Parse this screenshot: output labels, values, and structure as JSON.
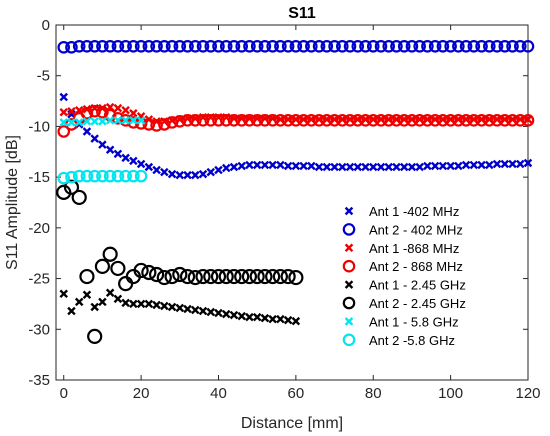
{
  "chart_data": {
    "type": "scatter",
    "title": "S11",
    "xlabel": "Distance [mm]",
    "ylabel": "S11 Amplitude [dB]",
    "xlim": [
      -2,
      120
    ],
    "ylim": [
      -35,
      0
    ],
    "xticks": [
      0,
      20,
      40,
      60,
      80,
      100,
      120
    ],
    "yticks": [
      0,
      -5,
      -10,
      -15,
      -20,
      -25,
      -30,
      -35
    ],
    "grid": false,
    "legend_position": "bottom-right",
    "series": [
      {
        "name": "Ant 1 -402 MHz",
        "color": "#0000cc",
        "marker": "x",
        "x": [
          0,
          2,
          4,
          6,
          8,
          10,
          12,
          14,
          16,
          18,
          20,
          22,
          24,
          26,
          28,
          30,
          32,
          34,
          36,
          38,
          40,
          42,
          44,
          46,
          48,
          50,
          52,
          54,
          56,
          58,
          60,
          62,
          64,
          66,
          68,
          70,
          72,
          74,
          76,
          78,
          80,
          82,
          84,
          86,
          88,
          90,
          92,
          94,
          96,
          98,
          100,
          102,
          104,
          106,
          108,
          110,
          112,
          114,
          116,
          118,
          120
        ],
        "y": [
          -7.1,
          -8.8,
          -9.8,
          -10.5,
          -11.2,
          -11.8,
          -12.3,
          -12.7,
          -13.1,
          -13.4,
          -13.7,
          -14.0,
          -14.3,
          -14.5,
          -14.7,
          -14.8,
          -14.8,
          -14.8,
          -14.7,
          -14.5,
          -14.3,
          -14.1,
          -14.0,
          -13.9,
          -13.8,
          -13.8,
          -13.8,
          -13.8,
          -13.8,
          -13.9,
          -13.9,
          -13.9,
          -13.9,
          -14.0,
          -14.0,
          -14.0,
          -14.0,
          -14.0,
          -14.0,
          -14.0,
          -14.0,
          -14.0,
          -14.0,
          -14.0,
          -14.0,
          -14.0,
          -14.0,
          -13.9,
          -13.9,
          -13.9,
          -13.9,
          -13.9,
          -13.8,
          -13.8,
          -13.8,
          -13.8,
          -13.7,
          -13.7,
          -13.7,
          -13.7,
          -13.6
        ]
      },
      {
        "name": "Ant 2 - 402 MHz",
        "color": "#0000cc",
        "marker": "o",
        "x": [
          0,
          2,
          4,
          6,
          8,
          10,
          12,
          14,
          16,
          18,
          20,
          22,
          24,
          26,
          28,
          30,
          32,
          34,
          36,
          38,
          40,
          42,
          44,
          46,
          48,
          50,
          52,
          54,
          56,
          58,
          60,
          62,
          64,
          66,
          68,
          70,
          72,
          74,
          76,
          78,
          80,
          82,
          84,
          86,
          88,
          90,
          92,
          94,
          96,
          98,
          100,
          102,
          104,
          106,
          108,
          110,
          112,
          114,
          116,
          118,
          120
        ],
        "y": [
          -2.2,
          -2.2,
          -2.1,
          -2.1,
          -2.1,
          -2.1,
          -2.1,
          -2.1,
          -2.1,
          -2.1,
          -2.1,
          -2.1,
          -2.1,
          -2.1,
          -2.1,
          -2.1,
          -2.1,
          -2.1,
          -2.1,
          -2.1,
          -2.1,
          -2.1,
          -2.1,
          -2.1,
          -2.1,
          -2.1,
          -2.1,
          -2.1,
          -2.1,
          -2.1,
          -2.1,
          -2.1,
          -2.1,
          -2.1,
          -2.1,
          -2.1,
          -2.1,
          -2.1,
          -2.1,
          -2.1,
          -2.1,
          -2.1,
          -2.1,
          -2.1,
          -2.1,
          -2.1,
          -2.1,
          -2.1,
          -2.1,
          -2.1,
          -2.1,
          -2.1,
          -2.1,
          -2.1,
          -2.1,
          -2.1,
          -2.1,
          -2.1,
          -2.1,
          -2.1,
          -2.1
        ]
      },
      {
        "name": "Ant 1 -868 MHz",
        "color": "#ee0000",
        "marker": "x",
        "x": [
          0,
          2,
          4,
          6,
          8,
          10,
          12,
          14,
          16,
          18,
          20,
          22,
          24,
          26,
          28,
          30,
          32,
          34,
          36,
          38,
          40,
          42,
          44,
          46,
          48,
          50,
          52,
          54,
          56,
          58,
          60,
          62,
          64,
          66,
          68,
          70,
          72,
          74,
          76,
          78,
          80,
          82,
          84,
          86,
          88,
          90,
          92,
          94,
          96,
          98,
          100,
          102,
          104,
          106,
          108,
          110,
          112,
          114,
          116,
          118,
          120
        ],
        "y": [
          -8.6,
          -8.5,
          -8.4,
          -8.3,
          -8.2,
          -8.2,
          -8.1,
          -8.2,
          -8.4,
          -8.7,
          -9.0,
          -9.3,
          -9.5,
          -9.5,
          -9.4,
          -9.3,
          -9.2,
          -9.2,
          -9.1,
          -9.1,
          -9.1,
          -9.1,
          -9.2,
          -9.2,
          -9.2,
          -9.2,
          -9.2,
          -9.2,
          -9.3,
          -9.3,
          -9.3,
          -9.3,
          -9.3,
          -9.3,
          -9.3,
          -9.3,
          -9.3,
          -9.3,
          -9.3,
          -9.3,
          -9.3,
          -9.3,
          -9.3,
          -9.3,
          -9.3,
          -9.3,
          -9.3,
          -9.3,
          -9.3,
          -9.3,
          -9.3,
          -9.3,
          -9.3,
          -9.3,
          -9.3,
          -9.3,
          -9.3,
          -9.3,
          -9.3,
          -9.3,
          -9.3
        ]
      },
      {
        "name": "Ant 2 - 868 MHz",
        "color": "#ee0000",
        "marker": "o",
        "x": [
          0,
          2,
          4,
          6,
          8,
          10,
          12,
          14,
          16,
          18,
          20,
          22,
          24,
          26,
          28,
          30,
          32,
          34,
          36,
          38,
          40,
          42,
          44,
          46,
          48,
          50,
          52,
          54,
          56,
          58,
          60,
          62,
          64,
          66,
          68,
          70,
          72,
          74,
          76,
          78,
          80,
          82,
          84,
          86,
          88,
          90,
          92,
          94,
          96,
          98,
          100,
          102,
          104,
          106,
          108,
          110,
          112,
          114,
          116,
          118,
          120
        ],
        "y": [
          -10.5,
          -9.8,
          -9.2,
          -8.7,
          -8.5,
          -8.6,
          -8.9,
          -9.2,
          -9.4,
          -9.6,
          -9.7,
          -9.8,
          -9.9,
          -9.8,
          -9.6,
          -9.5,
          -9.4,
          -9.4,
          -9.4,
          -9.4,
          -9.4,
          -9.4,
          -9.4,
          -9.4,
          -9.4,
          -9.4,
          -9.4,
          -9.4,
          -9.4,
          -9.4,
          -9.4,
          -9.4,
          -9.4,
          -9.4,
          -9.4,
          -9.4,
          -9.4,
          -9.4,
          -9.4,
          -9.4,
          -9.4,
          -9.4,
          -9.4,
          -9.4,
          -9.4,
          -9.4,
          -9.4,
          -9.4,
          -9.4,
          -9.4,
          -9.4,
          -9.4,
          -9.4,
          -9.4,
          -9.4,
          -9.4,
          -9.4,
          -9.4,
          -9.4,
          -9.4,
          -9.4
        ]
      },
      {
        "name": "Ant 1 - 2.45 GHz",
        "color": "#000000",
        "marker": "x",
        "x": [
          0,
          2,
          4,
          6,
          8,
          10,
          12,
          14,
          16,
          18,
          20,
          22,
          24,
          26,
          28,
          30,
          32,
          34,
          36,
          38,
          40,
          42,
          44,
          46,
          48,
          50,
          52,
          54,
          56,
          58,
          60
        ],
        "y": [
          -26.5,
          -28.2,
          -27.3,
          -26.6,
          -27.8,
          -27.3,
          -26.4,
          -27.0,
          -27.4,
          -27.5,
          -27.5,
          -27.5,
          -27.6,
          -27.7,
          -27.8,
          -27.9,
          -28.0,
          -28.1,
          -28.2,
          -28.3,
          -28.4,
          -28.5,
          -28.6,
          -28.7,
          -28.8,
          -28.8,
          -28.9,
          -29.0,
          -29.0,
          -29.1,
          -29.2
        ]
      },
      {
        "name": "Ant 2 - 2.45 GHz",
        "color": "#000000",
        "marker": "o",
        "x": [
          0,
          2,
          4,
          6,
          8,
          10,
          12,
          14,
          16,
          18,
          20,
          22,
          24,
          26,
          28,
          30,
          32,
          34,
          36,
          38,
          40,
          42,
          44,
          46,
          48,
          50,
          52,
          54,
          56,
          58,
          60
        ],
        "y": [
          -16.5,
          -16.0,
          -17.0,
          -24.8,
          -30.7,
          -23.8,
          -22.6,
          -24.0,
          -25.5,
          -24.8,
          -24.2,
          -24.4,
          -24.6,
          -24.9,
          -24.8,
          -24.6,
          -24.8,
          -24.9,
          -24.8,
          -24.8,
          -24.8,
          -24.8,
          -24.8,
          -24.8,
          -24.8,
          -24.8,
          -24.8,
          -24.8,
          -24.8,
          -24.8,
          -24.9
        ]
      },
      {
        "name": "Ant 1 - 5.8 GHz",
        "color": "#00e5ee",
        "marker": "x",
        "x": [
          0,
          2,
          4,
          6,
          8,
          10,
          12,
          14,
          16,
          18,
          20
        ],
        "y": [
          -9.6,
          -9.6,
          -9.6,
          -9.5,
          -9.5,
          -9.5,
          -9.4,
          -9.4,
          -9.4,
          -9.4,
          -9.4
        ]
      },
      {
        "name": "Ant 2 -5.8 GHz",
        "color": "#00e5ee",
        "marker": "o",
        "x": [
          0,
          2,
          4,
          6,
          8,
          10,
          12,
          14,
          16,
          18,
          20
        ],
        "y": [
          -15.1,
          -15.0,
          -14.9,
          -14.9,
          -14.9,
          -14.9,
          -14.9,
          -14.9,
          -14.9,
          -14.9,
          -14.9
        ]
      }
    ]
  }
}
